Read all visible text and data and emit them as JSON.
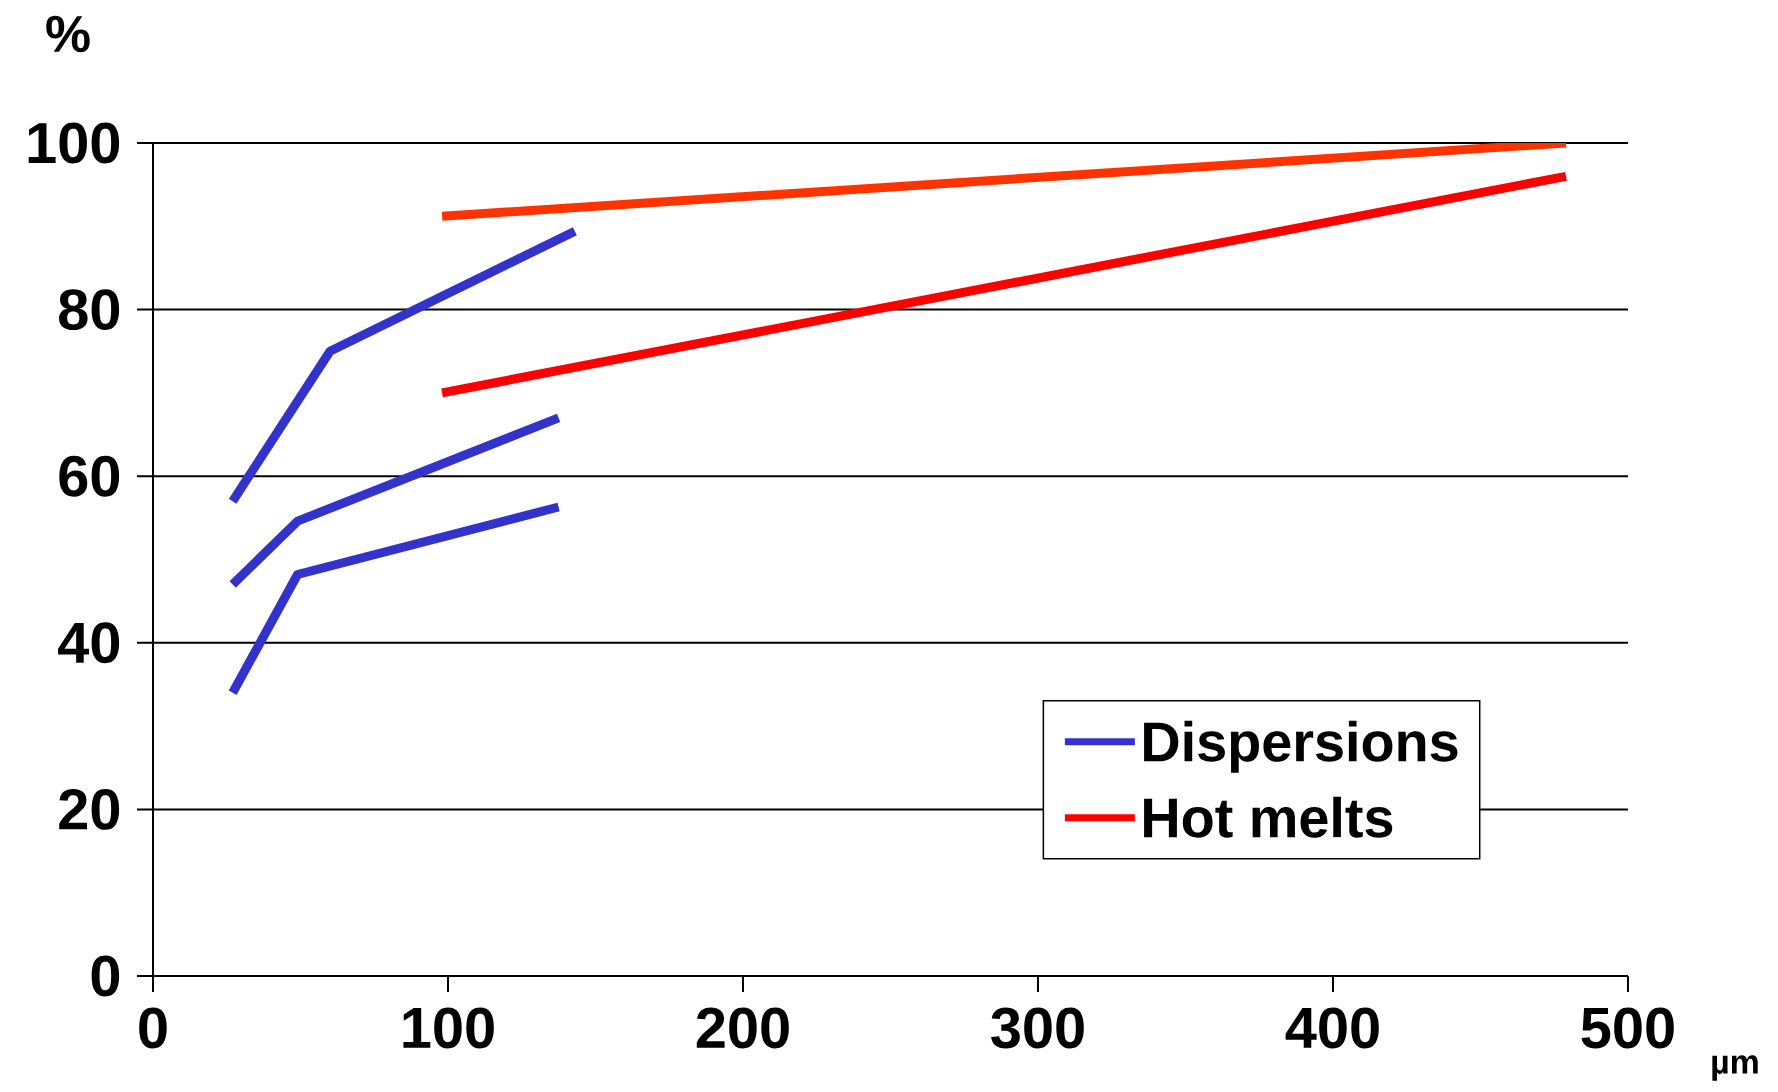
{
  "chart_data": {
    "type": "line",
    "xlabel": "µm",
    "ylabel": "%",
    "xlim": [
      0,
      500
    ],
    "xticks": [
      0,
      100,
      200,
      300,
      400,
      500
    ],
    "ylim": [
      0,
      100
    ],
    "yticks": [
      0,
      20,
      40,
      60,
      80,
      100
    ],
    "grid": "y",
    "legend": "bottom right",
    "series": [
      {
        "name": "Dispersions",
        "color": "#3333cc",
        "x": [
          27,
          60,
          143
        ],
        "values": [
          57,
          75,
          89.4
        ]
      },
      {
        "color": "#3333cc",
        "x": [
          27,
          49,
          137.5
        ],
        "values": [
          47,
          54.6,
          67
        ]
      },
      {
        "color": "#3333cc",
        "x": [
          27,
          49,
          137.5
        ],
        "values": [
          34,
          48.2,
          56.3
        ]
      },
      {
        "name": "Hot melts",
        "color": "#ff0000",
        "x": [
          98,
          479
        ],
        "values": [
          70,
          96
        ]
      },
      {
        "color": "#ff3300",
        "x": [
          98,
          479
        ],
        "values": [
          91.2,
          100
        ]
      }
    ]
  }
}
